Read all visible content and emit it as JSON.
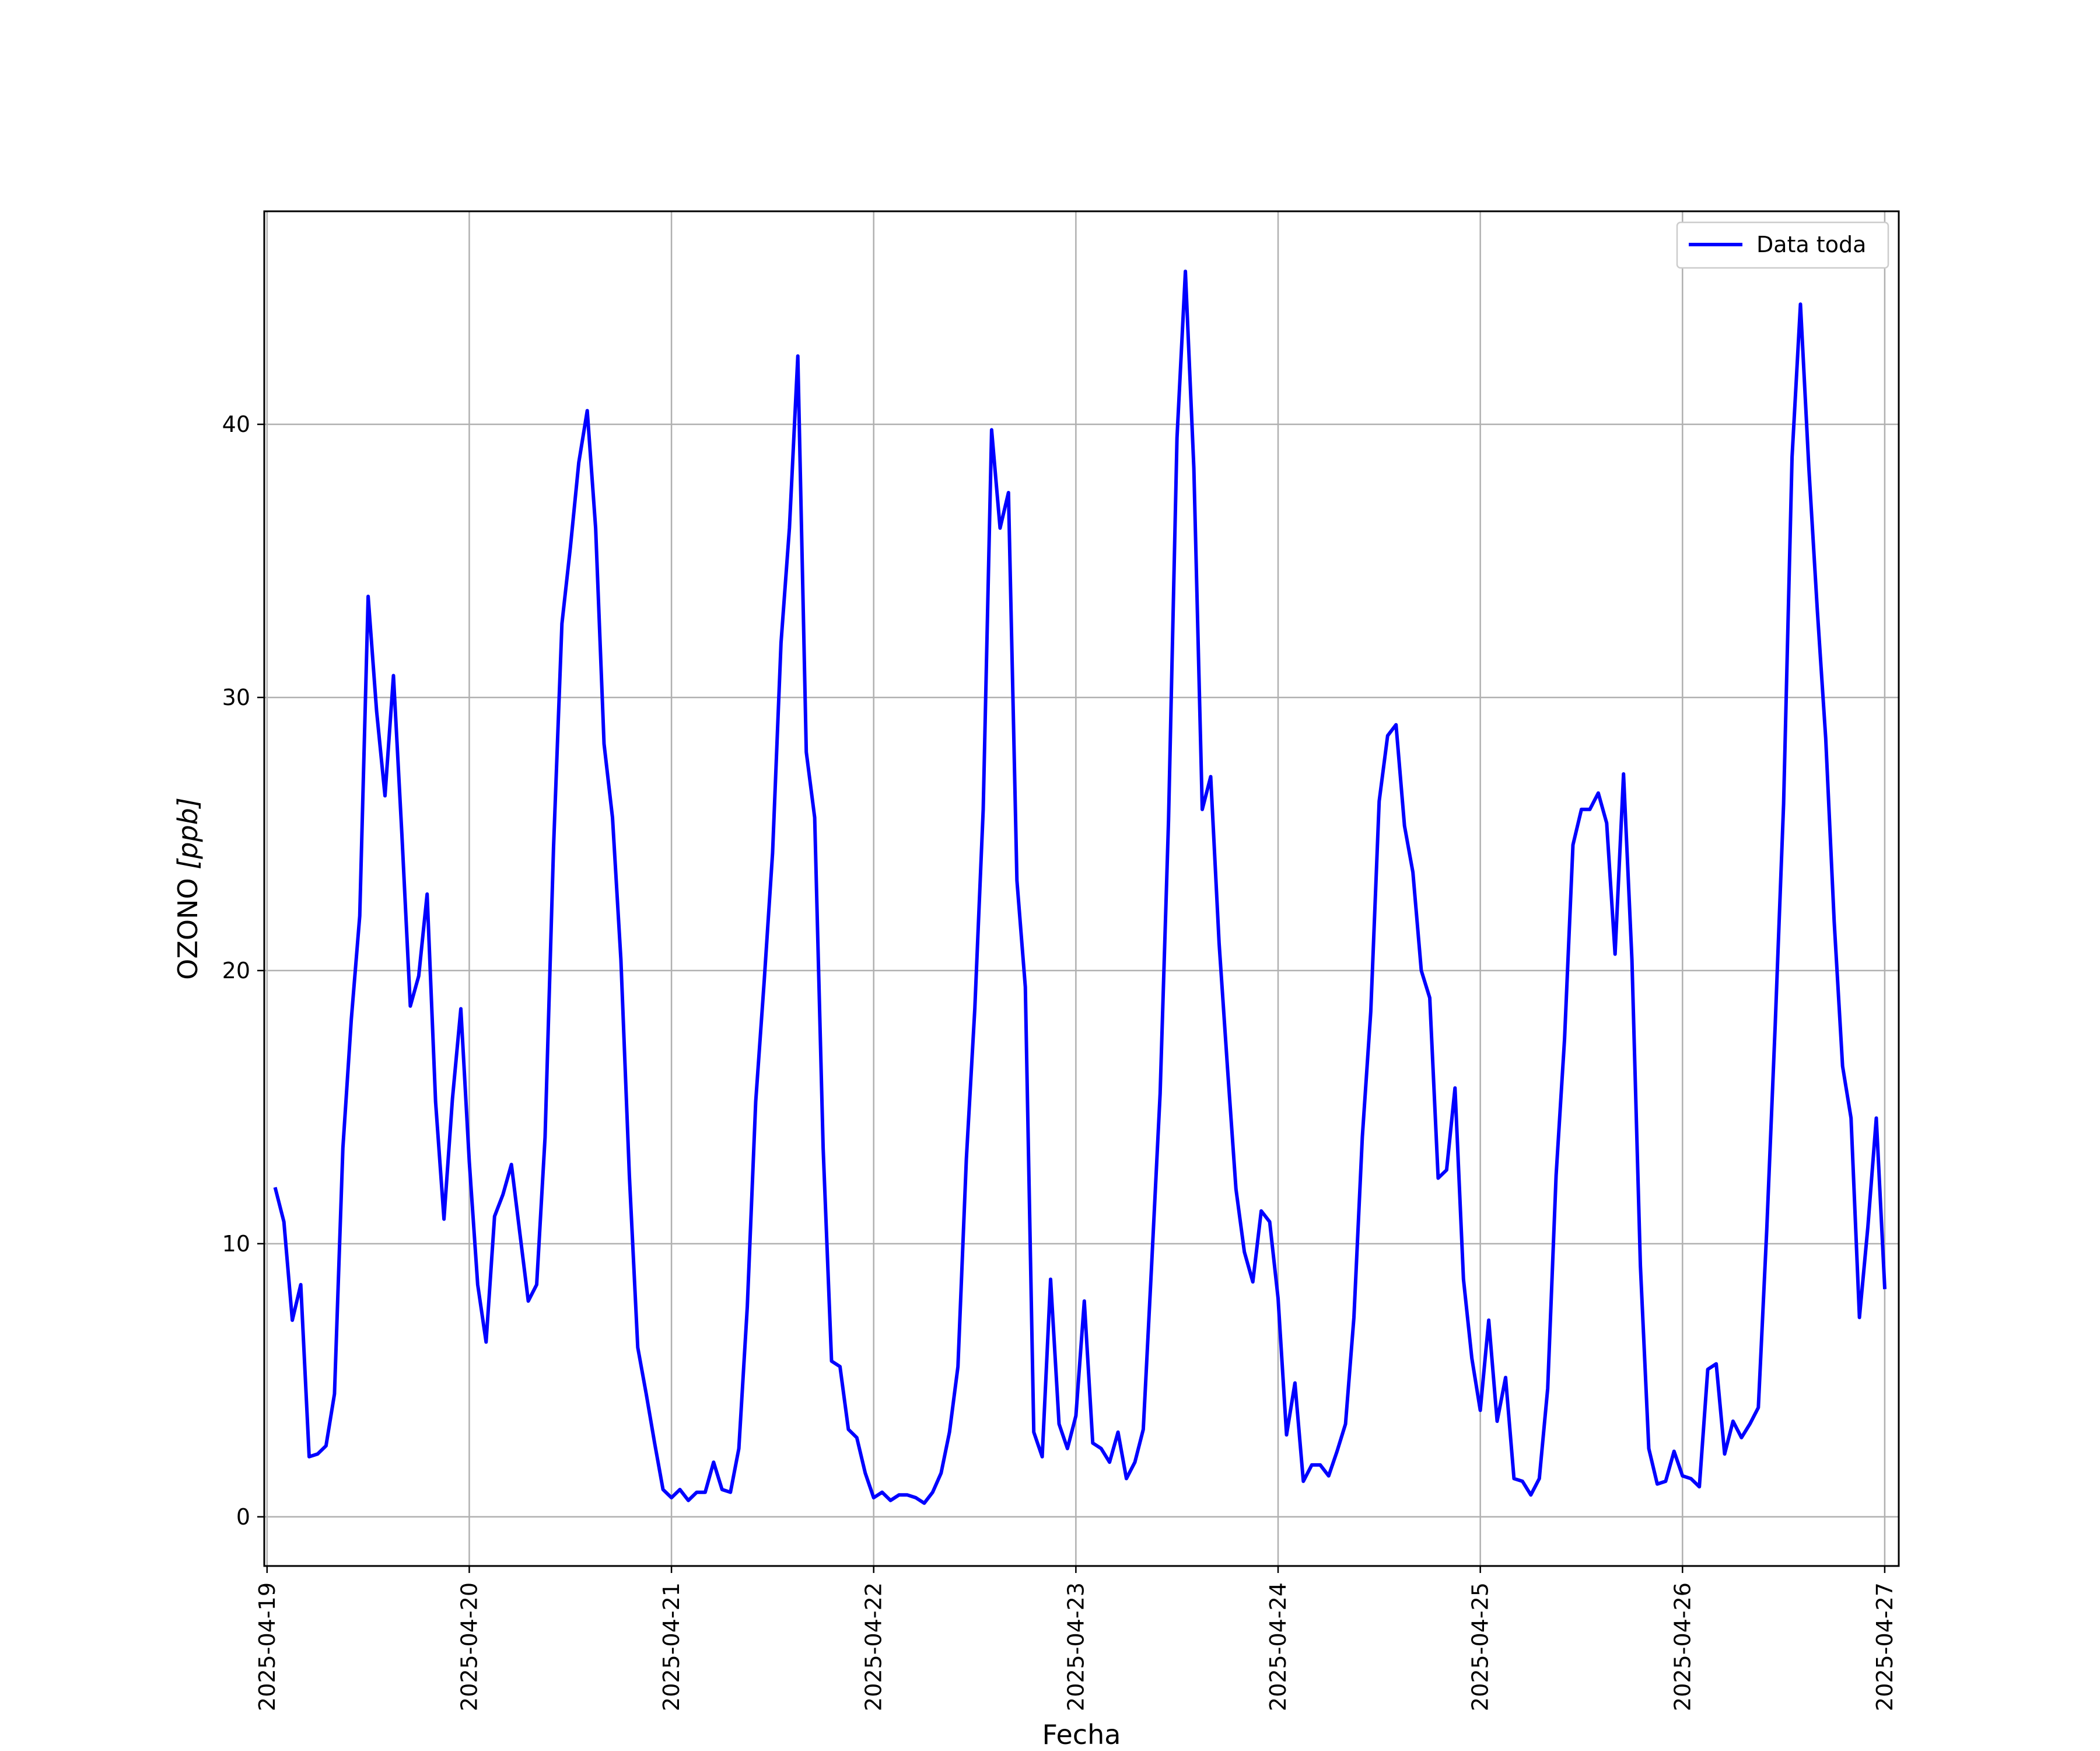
{
  "chart_data": {
    "type": "line",
    "xlabel": "Fecha",
    "ylabel_main": "OZONO ",
    "ylabel_unit": "[ppb]",
    "x_tick_labels": [
      "2025-04-19",
      "2025-04-20",
      "2025-04-21",
      "2025-04-22",
      "2025-04-23",
      "2025-04-24",
      "2025-04-25",
      "2025-04-26",
      "2025-04-27"
    ],
    "y_ticks": [
      0,
      10,
      20,
      30,
      40
    ],
    "xlim": [
      "2025-04-18 23:40",
      "2025-04-27 01:40"
    ],
    "ylim": [
      -1.8,
      47.8
    ],
    "grid": true,
    "legend_position": "upper right",
    "series": [
      {
        "name": "Data toda",
        "color": "#0000ff",
        "x": [
          "2025-04-19 01:00",
          "2025-04-19 02:00",
          "2025-04-19 03:00",
          "2025-04-19 04:00",
          "2025-04-19 05:00",
          "2025-04-19 06:00",
          "2025-04-19 07:00",
          "2025-04-19 08:00",
          "2025-04-19 09:00",
          "2025-04-19 10:00",
          "2025-04-19 11:00",
          "2025-04-19 12:00",
          "2025-04-19 13:00",
          "2025-04-19 14:00",
          "2025-04-19 15:00",
          "2025-04-19 16:00",
          "2025-04-19 17:00",
          "2025-04-19 18:00",
          "2025-04-19 19:00",
          "2025-04-19 20:00",
          "2025-04-19 21:00",
          "2025-04-19 22:00",
          "2025-04-19 23:00",
          "2025-04-20 00:00",
          "2025-04-20 01:00",
          "2025-04-20 02:00",
          "2025-04-20 03:00",
          "2025-04-20 04:00",
          "2025-04-20 05:00",
          "2025-04-20 06:00",
          "2025-04-20 07:00",
          "2025-04-20 08:00",
          "2025-04-20 09:00",
          "2025-04-20 10:00",
          "2025-04-20 11:00",
          "2025-04-20 12:00",
          "2025-04-20 13:00",
          "2025-04-20 14:00",
          "2025-04-20 15:00",
          "2025-04-20 16:00",
          "2025-04-20 17:00",
          "2025-04-20 18:00",
          "2025-04-20 19:00",
          "2025-04-20 20:00",
          "2025-04-20 21:00",
          "2025-04-20 22:00",
          "2025-04-20 23:00",
          "2025-04-21 00:00",
          "2025-04-21 01:00",
          "2025-04-21 02:00",
          "2025-04-21 03:00",
          "2025-04-21 04:00",
          "2025-04-21 05:00",
          "2025-04-21 06:00",
          "2025-04-21 07:00",
          "2025-04-21 08:00",
          "2025-04-21 09:00",
          "2025-04-21 10:00",
          "2025-04-21 11:00",
          "2025-04-21 12:00",
          "2025-04-21 13:00",
          "2025-04-21 14:00",
          "2025-04-21 15:00",
          "2025-04-21 16:00",
          "2025-04-21 17:00",
          "2025-04-21 18:00",
          "2025-04-21 19:00",
          "2025-04-21 20:00",
          "2025-04-21 21:00",
          "2025-04-21 22:00",
          "2025-04-21 23:00",
          "2025-04-22 00:00",
          "2025-04-22 01:00",
          "2025-04-22 02:00",
          "2025-04-22 03:00",
          "2025-04-22 04:00",
          "2025-04-22 05:00",
          "2025-04-22 06:00",
          "2025-04-22 07:00",
          "2025-04-22 08:00",
          "2025-04-22 09:00",
          "2025-04-22 10:00",
          "2025-04-22 11:00",
          "2025-04-22 12:00",
          "2025-04-22 13:00",
          "2025-04-22 14:00",
          "2025-04-22 15:00",
          "2025-04-22 16:00",
          "2025-04-22 17:00",
          "2025-04-22 18:00",
          "2025-04-22 19:00",
          "2025-04-22 20:00",
          "2025-04-22 21:00",
          "2025-04-22 22:00",
          "2025-04-22 23:00",
          "2025-04-23 00:00",
          "2025-04-23 01:00",
          "2025-04-23 02:00",
          "2025-04-23 03:00",
          "2025-04-23 04:00",
          "2025-04-23 05:00",
          "2025-04-23 06:00",
          "2025-04-23 07:00",
          "2025-04-23 08:00",
          "2025-04-23 09:00",
          "2025-04-23 10:00",
          "2025-04-23 11:00",
          "2025-04-23 12:00",
          "2025-04-23 13:00",
          "2025-04-23 14:00",
          "2025-04-23 15:00",
          "2025-04-23 16:00",
          "2025-04-23 17:00",
          "2025-04-23 18:00",
          "2025-04-23 19:00",
          "2025-04-23 20:00",
          "2025-04-23 21:00",
          "2025-04-23 22:00",
          "2025-04-23 23:00",
          "2025-04-24 00:00",
          "2025-04-24 01:00",
          "2025-04-24 02:00",
          "2025-04-24 03:00",
          "2025-04-24 04:00",
          "2025-04-24 05:00",
          "2025-04-24 06:00",
          "2025-04-24 07:00",
          "2025-04-24 08:00",
          "2025-04-24 09:00",
          "2025-04-24 10:00",
          "2025-04-24 11:00",
          "2025-04-24 12:00",
          "2025-04-24 13:00",
          "2025-04-24 14:00",
          "2025-04-24 15:00",
          "2025-04-24 16:00",
          "2025-04-24 17:00",
          "2025-04-24 18:00",
          "2025-04-24 19:00",
          "2025-04-24 20:00",
          "2025-04-24 21:00",
          "2025-04-24 22:00",
          "2025-04-24 23:00",
          "2025-04-25 00:00",
          "2025-04-25 01:00",
          "2025-04-25 02:00",
          "2025-04-25 03:00",
          "2025-04-25 04:00",
          "2025-04-25 05:00",
          "2025-04-25 06:00",
          "2025-04-25 07:00",
          "2025-04-25 08:00",
          "2025-04-25 09:00",
          "2025-04-25 10:00",
          "2025-04-25 11:00",
          "2025-04-25 12:00",
          "2025-04-25 13:00",
          "2025-04-25 14:00",
          "2025-04-25 15:00",
          "2025-04-25 16:00",
          "2025-04-25 17:00",
          "2025-04-25 18:00",
          "2025-04-25 19:00",
          "2025-04-25 20:00",
          "2025-04-25 21:00",
          "2025-04-25 22:00",
          "2025-04-25 23:00",
          "2025-04-26 00:00",
          "2025-04-26 01:00",
          "2025-04-26 02:00",
          "2025-04-26 03:00",
          "2025-04-26 04:00",
          "2025-04-26 05:00",
          "2025-04-26 06:00",
          "2025-04-26 07:00",
          "2025-04-26 08:00",
          "2025-04-26 09:00",
          "2025-04-26 10:00",
          "2025-04-26 11:00",
          "2025-04-26 12:00",
          "2025-04-26 13:00",
          "2025-04-26 14:00",
          "2025-04-26 15:00",
          "2025-04-26 16:00",
          "2025-04-26 17:00",
          "2025-04-26 18:00",
          "2025-04-26 19:00",
          "2025-04-26 20:00",
          "2025-04-26 21:00",
          "2025-04-26 22:00",
          "2025-04-26 23:00",
          "2025-04-27 00:00"
        ],
        "values": [
          12.0,
          10.8,
          7.2,
          8.5,
          2.2,
          2.3,
          2.6,
          4.5,
          13.5,
          18.2,
          22.0,
          33.7,
          29.5,
          26.4,
          30.8,
          25.0,
          18.7,
          19.8,
          22.8,
          15.2,
          10.9,
          15.3,
          18.6,
          13.0,
          8.5,
          6.4,
          11.0,
          11.8,
          12.9,
          10.4,
          7.9,
          8.5,
          13.9,
          24.5,
          32.7,
          35.5,
          38.6,
          40.5,
          36.2,
          28.3,
          25.6,
          20.4,
          12.5,
          6.2,
          4.5,
          2.7,
          1.0,
          0.7,
          1.0,
          0.6,
          0.9,
          0.9,
          2.0,
          1.0,
          0.9,
          2.5,
          7.7,
          15.2,
          19.6,
          24.3,
          32.0,
          36.2,
          42.5,
          28.0,
          25.6,
          13.5,
          5.7,
          5.5,
          3.2,
          2.9,
          1.6,
          0.7,
          0.9,
          0.6,
          0.8,
          0.8,
          0.7,
          0.5,
          0.9,
          1.6,
          3.1,
          5.5,
          13.1,
          18.6,
          25.9,
          39.8,
          36.2,
          37.5,
          23.3,
          19.4,
          3.1,
          2.2,
          8.7,
          3.4,
          2.5,
          3.7,
          7.9,
          2.7,
          2.5,
          2.0,
          3.1,
          1.4,
          2.0,
          3.2,
          9.3,
          15.5,
          25.5,
          39.5,
          45.6,
          38.4,
          25.9,
          27.1,
          21.0,
          16.4,
          12.0,
          9.7,
          8.6,
          11.2,
          10.8,
          8.0,
          3.0,
          4.9,
          1.3,
          1.9,
          1.9,
          1.5,
          2.4,
          3.4,
          7.3,
          13.9,
          18.5,
          26.2,
          28.6,
          29.0,
          25.3,
          23.6,
          20.0,
          19.0,
          12.4,
          12.7,
          15.7,
          8.7,
          5.8,
          3.9,
          7.2,
          3.5,
          5.1,
          1.4,
          1.3,
          0.8,
          1.4,
          4.7,
          12.5,
          17.5,
          24.6,
          25.9,
          25.9,
          26.5,
          25.4,
          20.6,
          27.2,
          20.4,
          9.2,
          2.5,
          1.2,
          1.3,
          2.4,
          1.5,
          1.4,
          1.1,
          5.4,
          5.6,
          2.3,
          3.5,
          2.9,
          3.4,
          4.0,
          10.5,
          18.0,
          26.1,
          38.8,
          44.4,
          38.4,
          33.2,
          28.5,
          21.8,
          16.5,
          14.6,
          7.3,
          10.6,
          14.6,
          8.4
        ]
      }
    ]
  }
}
